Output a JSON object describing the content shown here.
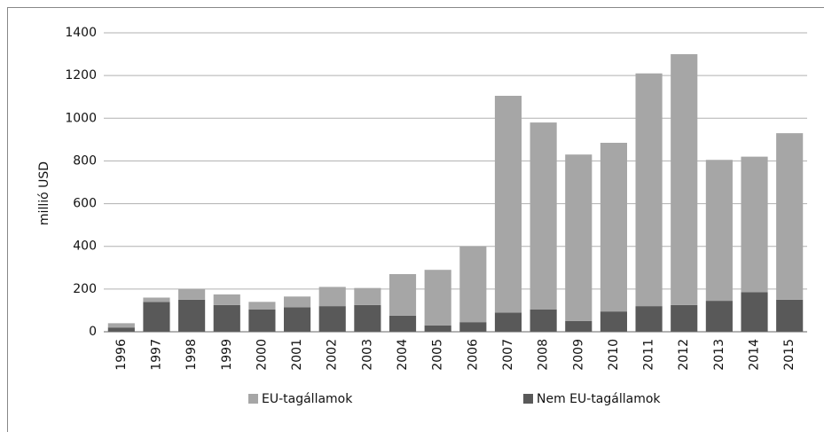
{
  "chart_data": {
    "type": "stacked-bar",
    "y_label": "millió USD",
    "categories": [
      "1996",
      "1997",
      "1998",
      "1999",
      "2000",
      "2001",
      "2002",
      "2003",
      "2004",
      "2005",
      "2006",
      "2007",
      "2008",
      "2009",
      "2010",
      "2011",
      "2012",
      "2013",
      "2014",
      "2015"
    ],
    "series": [
      {
        "name": "EU-tagállamok",
        "color": "#a6a6a6",
        "values": [
          20,
          20,
          50,
          50,
          35,
          50,
          90,
          80,
          195,
          260,
          355,
          1015,
          875,
          780,
          790,
          1090,
          1175,
          660,
          635,
          780
        ]
      },
      {
        "name": "Nem EU-tagállamok",
        "color": "#595959",
        "values": [
          20,
          140,
          150,
          125,
          105,
          115,
          120,
          125,
          75,
          30,
          45,
          90,
          105,
          50,
          95,
          120,
          125,
          145,
          185,
          150
        ]
      }
    ],
    "ylim": [
      0,
      1400
    ],
    "yticks": [
      0,
      200,
      400,
      600,
      800,
      1000,
      1200,
      1400
    ],
    "grid": true
  }
}
